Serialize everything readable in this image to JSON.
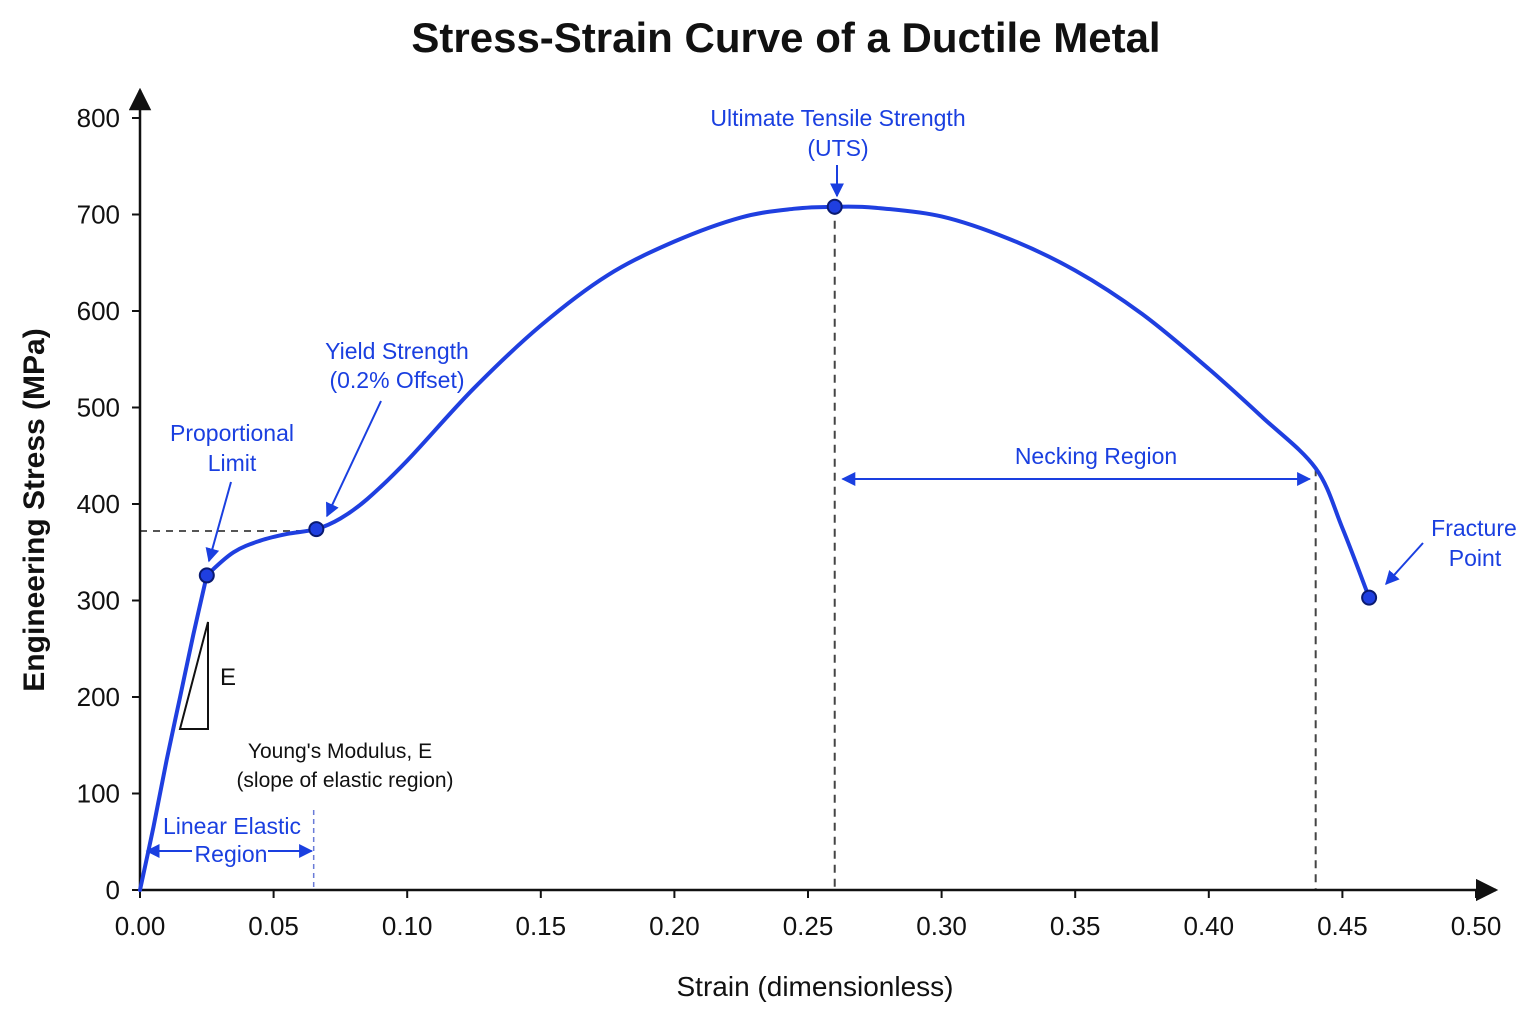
{
  "chart_data": {
    "type": "line",
    "title": "Stress-Strain Curve of a Ductile Metal",
    "xlabel": "Strain (dimensionless)",
    "ylabel": "Engineering Stress (MPa)",
    "xlim": [
      0,
      0.5
    ],
    "ylim": [
      0,
      800
    ],
    "x_ticks": [
      "0.00",
      "0.05",
      "0.10",
      "0.15",
      "0.20",
      "0.25",
      "0.30",
      "0.35",
      "0.40",
      "0.45",
      "0.50"
    ],
    "y_ticks": [
      "0",
      "100",
      "200",
      "300",
      "400",
      "500",
      "600",
      "700",
      "800"
    ],
    "grid": false,
    "series": [
      {
        "color": "#1f3fe0",
        "x": [
          0,
          0.005,
          0.01,
          0.015,
          0.02,
          0.025,
          0.035,
          0.045,
          0.055,
          0.066,
          0.075,
          0.085,
          0.1,
          0.125,
          0.15,
          0.175,
          0.2,
          0.225,
          0.245,
          0.26,
          0.275,
          0.3,
          0.325,
          0.35,
          0.375,
          0.4,
          0.42,
          0.44,
          0.45,
          0.46
        ],
        "y": [
          0,
          65,
          135,
          200,
          265,
          326,
          350,
          362,
          369,
          374,
          385,
          405,
          445,
          520,
          585,
          637,
          672,
          697,
          706,
          708,
          707,
          698,
          675,
          642,
          597,
          540,
          490,
          437,
          375,
          303
        ]
      }
    ],
    "points": [
      {
        "name": "proportional-limit",
        "x": 0.025,
        "y": 326
      },
      {
        "name": "yield-strength",
        "x": 0.066,
        "y": 374
      },
      {
        "name": "uts",
        "x": 0.26,
        "y": 708
      },
      {
        "name": "fracture-point",
        "x": 0.46,
        "y": 303
      }
    ],
    "reference_lines": {
      "yield_stress": 372,
      "linear_elastic_end_strain": 0.065,
      "uts_strain": 0.26,
      "necking_end_strain": 0.44
    },
    "annotations": {
      "uts": [
        "Ultimate Tensile Strength",
        "(UTS)"
      ],
      "yield": [
        "Yield Strength",
        "(0.2% Offset)"
      ],
      "proportional": [
        "Proportional",
        "Limit"
      ],
      "fracture": [
        "Fracture",
        "Point"
      ],
      "necking": "Necking Region",
      "linear_elastic": [
        "Linear Elastic",
        "Region"
      ],
      "modulus_symbol": "E",
      "modulus_text": [
        "Young's Modulus, E",
        "(slope of elastic region)"
      ]
    },
    "colors": {
      "curve": "#1f3fe0",
      "annotation": "#1a3fe0",
      "guide": "#555555"
    }
  }
}
